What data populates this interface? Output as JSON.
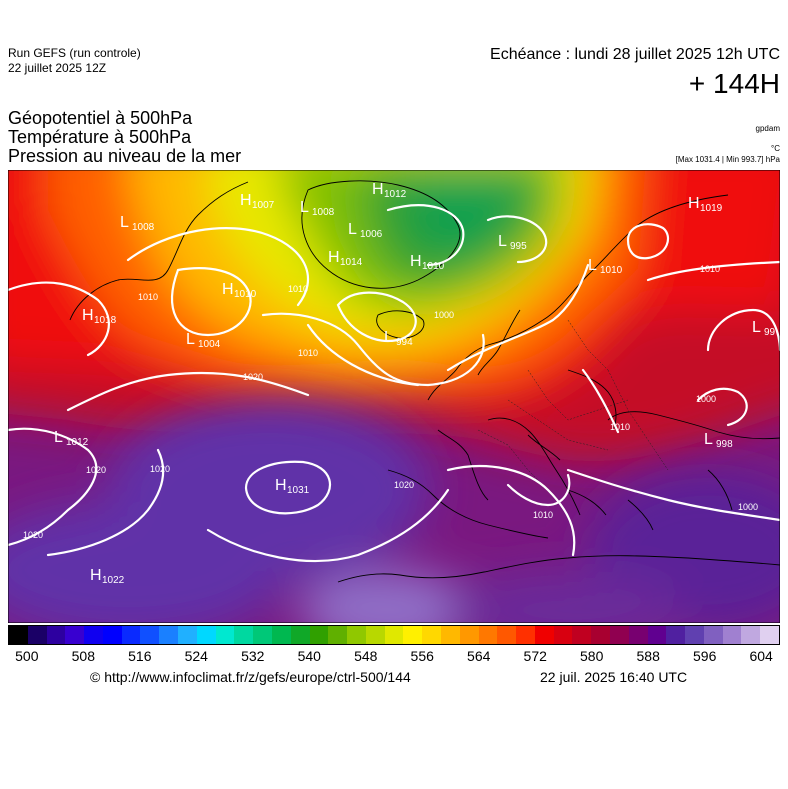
{
  "header": {
    "run_title": "Run GEFS (run controle)",
    "run_date": "22 juillet 2025 12Z",
    "echeance": "Echéance : lundi 28 juillet 2025 12h UTC",
    "lead_time": "+ 144H"
  },
  "parameters": {
    "line1": "Géopotentiel à 500hPa",
    "line2": "Température à 500hPa",
    "line3": "Pression au niveau de la mer"
  },
  "units": {
    "geopotential": "gpdam",
    "temperature": "°C",
    "pressure_stats": "[Max 1031.4 | Min 993.7] hPa"
  },
  "pressure_centers": [
    {
      "type": "L",
      "value": "1008"
    },
    {
      "type": "H",
      "value": "1007"
    },
    {
      "type": "L",
      "value": "1008"
    },
    {
      "type": "H",
      "value": "1012"
    },
    {
      "type": "L",
      "value": "1006"
    },
    {
      "type": "H",
      "value": "1014"
    },
    {
      "type": "H",
      "value": "1010"
    },
    {
      "type": "L",
      "value": "995"
    },
    {
      "type": "H",
      "value": "1019"
    },
    {
      "type": "L",
      "value": "1010"
    },
    {
      "type": "H",
      "value": "1018"
    },
    {
      "type": "H",
      "value": "1010"
    },
    {
      "type": "L",
      "value": "1004"
    },
    {
      "type": "L",
      "value": "994"
    },
    {
      "type": "L",
      "value": "99"
    },
    {
      "type": "L",
      "value": "1012"
    },
    {
      "type": "H",
      "value": "1031"
    },
    {
      "type": "L",
      "value": "998"
    },
    {
      "type": "H",
      "value": "1022"
    }
  ],
  "isobar_labels": [
    "1020",
    "1020",
    "1020",
    "1020",
    "1010",
    "1010",
    "1010",
    "1010",
    "1010",
    "1000",
    "1000",
    "1010",
    "1000",
    "1020"
  ],
  "scale": {
    "colors": [
      "#000000",
      "#1a0066",
      "#2d00a0",
      "#3800d0",
      "#1000f0",
      "#0000ff",
      "#0a2aff",
      "#1050ff",
      "#1a80ff",
      "#20b0ff",
      "#00d8ff",
      "#00e8d0",
      "#00d8a0",
      "#00c878",
      "#00b850",
      "#10a828",
      "#30a000",
      "#60b000",
      "#90c800",
      "#b8d800",
      "#e0e800",
      "#fff000",
      "#ffd800",
      "#ffb800",
      "#ff9800",
      "#ff7800",
      "#ff5800",
      "#ff3000",
      "#f00000",
      "#d80010",
      "#c00020",
      "#a80030",
      "#900050",
      "#780070",
      "#600090",
      "#5020a0",
      "#6040b0",
      "#8060c0",
      "#a080d0",
      "#c0a8e0",
      "#e0d0f0"
    ],
    "ticks": [
      "500",
      "508",
      "516",
      "524",
      "532",
      "540",
      "548",
      "556",
      "564",
      "572",
      "580",
      "588",
      "596",
      "604"
    ]
  },
  "footer": {
    "credit": "© http://www.infoclimat.fr/z/gefs/europe/ctrl-500/144",
    "generated": "22 juil. 2025 16:40 UTC"
  }
}
